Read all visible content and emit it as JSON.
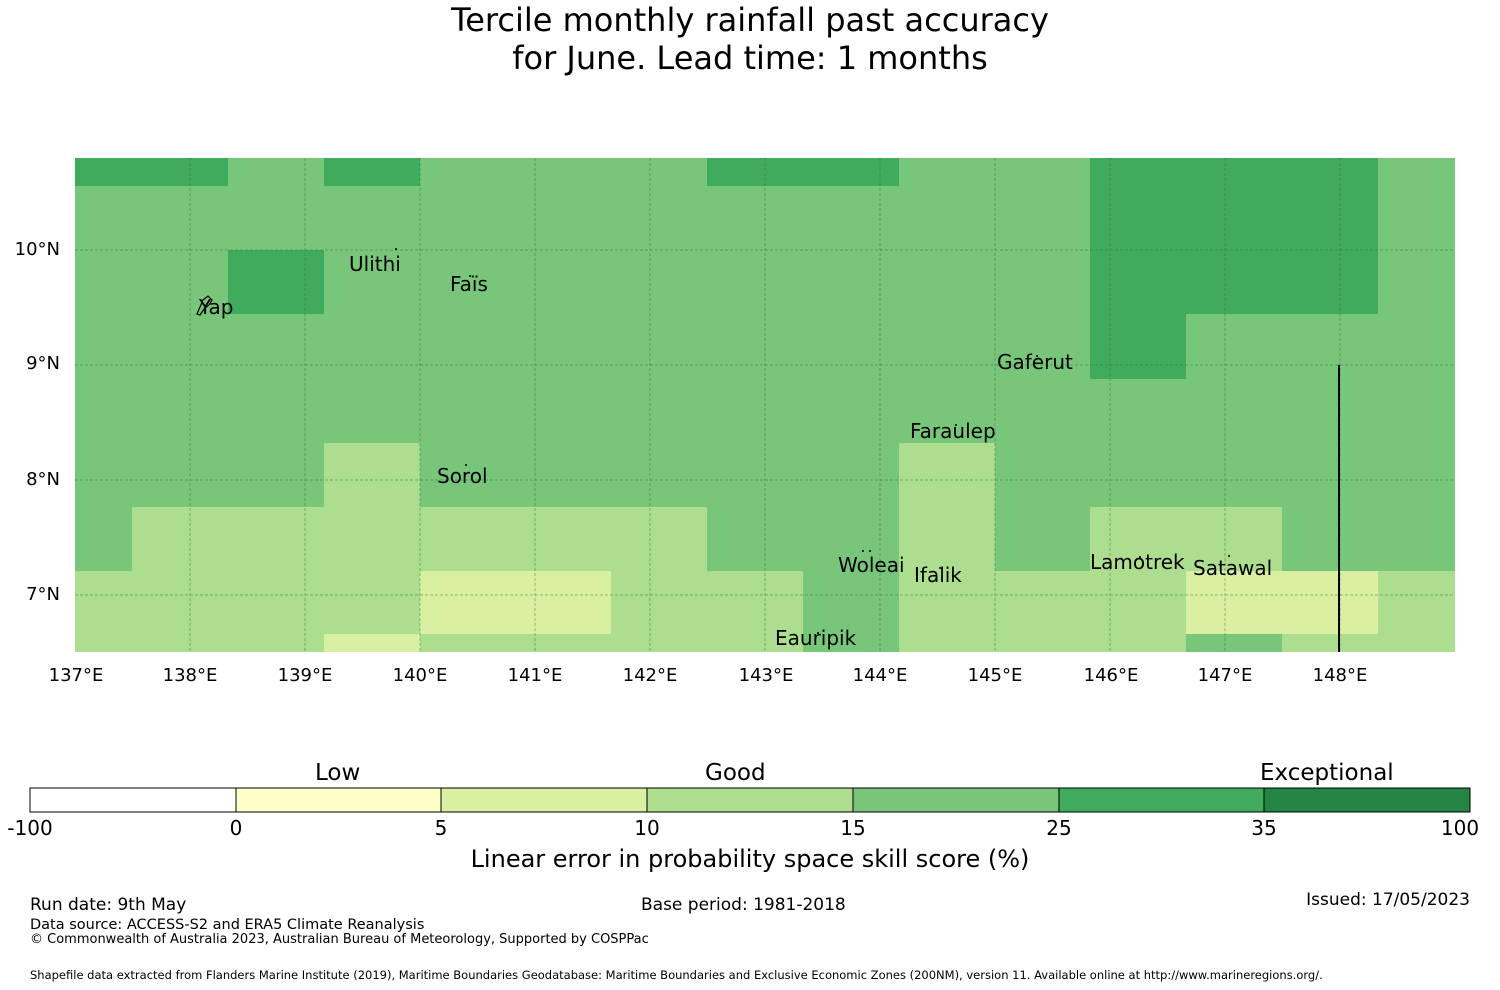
{
  "title": {
    "line1": "Tercile monthly rainfall past accuracy",
    "line2": "for June. Lead time: 1 months"
  },
  "map": {
    "lat_labels": [
      "10°N",
      "9°N",
      "8°N",
      "7°N"
    ],
    "lon_labels": [
      "137°E",
      "138°E",
      "139°E",
      "140°E",
      "141°E",
      "142°E",
      "143°E",
      "144°E",
      "145°E",
      "146°E",
      "147°E",
      "148°E"
    ],
    "places": [
      {
        "name": "Yap",
        "lon": 138.1,
        "lat": 9.5
      },
      {
        "name": "Ulithi",
        "lon": 139.7,
        "lat": 10.0
      },
      {
        "name": "Faïs",
        "lon": 140.5,
        "lat": 9.8
      },
      {
        "name": "Gaferut",
        "lon": 145.4,
        "lat": 9.2
      },
      {
        "name": "Faraulep",
        "lon": 144.5,
        "lat": 8.6
      },
      {
        "name": "Sorol",
        "lon": 140.7,
        "lat": 8.1
      },
      {
        "name": "Woleai",
        "lon": 143.9,
        "lat": 7.4
      },
      {
        "name": "Ifalik",
        "lon": 144.45,
        "lat": 7.25
      },
      {
        "name": "Lamotrek",
        "lon": 146.3,
        "lat": 7.5
      },
      {
        "name": "Satawal",
        "lon": 147.0,
        "lat": 7.35
      },
      {
        "name": "Eauripik",
        "lon": 143.05,
        "lat": 6.7
      }
    ]
  },
  "colorbar": {
    "categories": [
      "Low",
      "Good",
      "Exceptional"
    ],
    "ticks": [
      "-100",
      "0",
      "5",
      "10",
      "15",
      "25",
      "35",
      "100"
    ],
    "colors": [
      "#ffffff",
      "#ffffcc",
      "#d9f0a3",
      "#addd8e",
      "#78c679",
      "#41ab5d",
      "#238443"
    ],
    "title": "Linear error in probability space skill score (%)"
  },
  "footer": {
    "run_date": "Run date: 9th May",
    "base_period": "Base period: 1981-2018",
    "issued": "Issued: 17/05/2023",
    "data_source": "Data source: ACCESS-S2 and ERA5 Climate Reanalysis",
    "copyright": "© Commonwealth of Australia 2023, Australian Bureau of Meteorology, Supported by COSPPac",
    "shapefile": "Shapefile data extracted from Flanders Marine Institute (2019), Maritime Boundaries Geodatabase: Maritime Boundaries and Exclusive Economic Zones (200NM), version 11. Available online at http://www.marineregions.org/."
  }
}
